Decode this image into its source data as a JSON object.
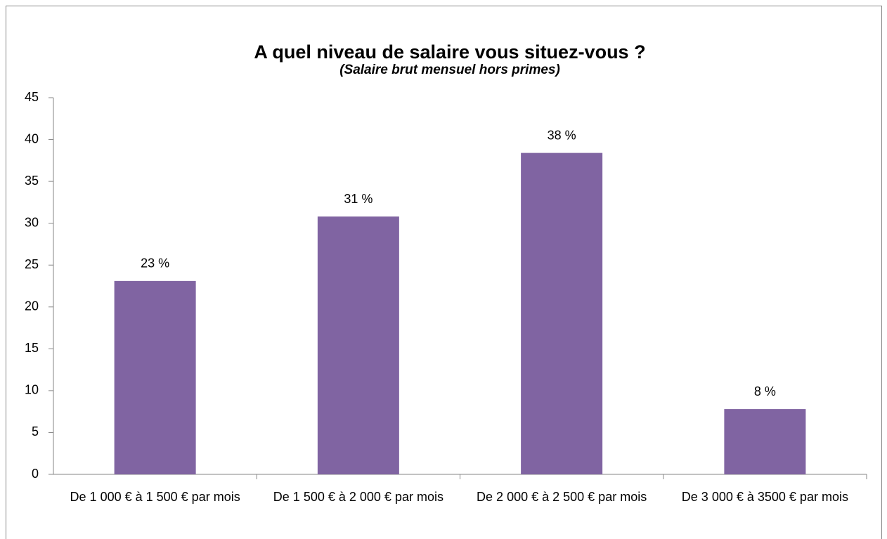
{
  "chart_data": {
    "type": "bar",
    "title": "A quel niveau de salaire vous situez-vous ?",
    "subtitle": "(Salaire brut mensuel hors primes)",
    "categories": [
      "De 1 000 € à 1 500 € par mois",
      "De 1 500 € à 2 000 € par mois",
      "De 2 000 € à 2 500 € par mois",
      "De 3 000 € à 3500 € par mois"
    ],
    "values": [
      23.1,
      30.8,
      38.4,
      7.8
    ],
    "value_labels": [
      "23 %",
      "31 %",
      "38 %",
      "8 %"
    ],
    "color": "#8064a2",
    "ylim": [
      0,
      45
    ],
    "yticks": [
      0,
      5,
      10,
      15,
      20,
      25,
      30,
      35,
      40,
      45
    ],
    "grid": false
  }
}
